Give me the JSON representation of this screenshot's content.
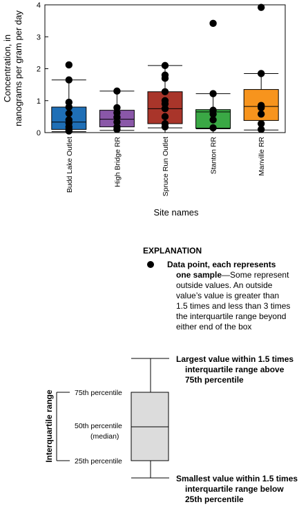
{
  "chart_data": {
    "type": "box",
    "xlabel": "Site names",
    "ylabel_line1": "Concentration, in",
    "ylabel_line2": "nanograms per gram per day",
    "ylim": [
      0,
      4
    ],
    "yticks": [
      0,
      1,
      2,
      3,
      4
    ],
    "grid": false,
    "categories": [
      "Budd Lake Outlet",
      "High Bridge RR",
      "Spruce Run Outlet",
      "Stanton RR",
      "Manville RR"
    ],
    "colors": [
      "#1f6fb6",
      "#8a57a8",
      "#a9352a",
      "#3aa845",
      "#f7941d"
    ],
    "boxes": [
      {
        "whisker_low": 0.03,
        "q1": 0.1,
        "median": 0.33,
        "q3": 0.8,
        "whisker_high": 1.65,
        "points": [
          2.12,
          1.65,
          0.95,
          0.8,
          0.6,
          0.4,
          0.3,
          0.18,
          0.1,
          0.05
        ]
      },
      {
        "whisker_low": 0.07,
        "q1": 0.18,
        "median": 0.42,
        "q3": 0.7,
        "whisker_high": 1.3,
        "points": [
          1.3,
          0.78,
          0.62,
          0.48,
          0.33,
          0.18,
          0.1
        ]
      },
      {
        "whisker_low": 0.15,
        "q1": 0.28,
        "median": 0.75,
        "q3": 1.28,
        "whisker_high": 2.1,
        "points": [
          2.1,
          1.8,
          1.7,
          1.28,
          1.0,
          0.9,
          0.75,
          0.5,
          0.28,
          0.18
        ]
      },
      {
        "whisker_low": 0.12,
        "q1": 0.14,
        "median": 0.65,
        "q3": 0.72,
        "whisker_high": 1.22,
        "points": [
          3.42,
          1.22,
          0.7,
          0.58,
          0.4,
          0.15
        ]
      },
      {
        "whisker_low": 0.08,
        "q1": 0.38,
        "median": 0.82,
        "q3": 1.35,
        "whisker_high": 1.85,
        "points": [
          3.92,
          1.85,
          0.85,
          0.78,
          0.58,
          0.28,
          0.1
        ]
      }
    ]
  },
  "explanation": {
    "heading": "EXPLANATION",
    "point_title_1": "Data point, each represents",
    "point_title_2": "one sample",
    "point_desc_1": "—Some represent",
    "point_desc_2": "outside values. An outside",
    "point_desc_3": "value’s value is greater than",
    "point_desc_4": "1.5 times and less than 3 times",
    "point_desc_5": "the interquartile range beyond",
    "point_desc_6": "either end of the box",
    "largest_1": "Largest value within 1.5 times",
    "largest_2": "interquartile range above",
    "largest_3": "75th percentile",
    "smallest_1": "Smallest value within 1.5 times",
    "smallest_2": "interquartile range below",
    "smallest_3": "25th percentile",
    "p75": "75th percentile",
    "p50": "50th percentile",
    "median": "(median)",
    "p25": "25th percentile",
    "iqr": "Interquartile range"
  }
}
